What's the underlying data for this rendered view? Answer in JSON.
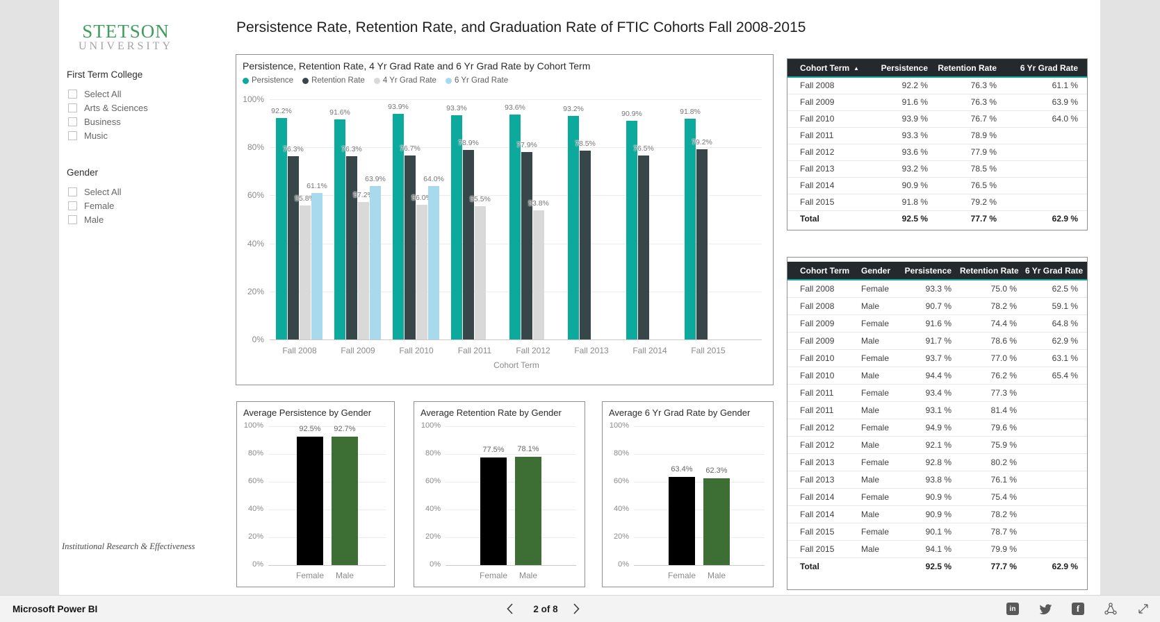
{
  "page_title": "Persistence Rate, Retention Rate, and Graduation Rate of FTIC Cohorts Fall 2008-2015",
  "logo": {
    "primary": "STETSON",
    "secondary": "UNIVERSITY"
  },
  "sidebar": {
    "filters": [
      {
        "label": "First Term College",
        "options": [
          "Select All",
          "Arts & Sciences",
          "Business",
          "Music"
        ],
        "checked": [
          false,
          false,
          false,
          false
        ]
      },
      {
        "label": "Gender",
        "options": [
          "Select All",
          "Female",
          "Male"
        ],
        "checked": [
          false,
          false,
          false
        ]
      }
    ],
    "footer_note": "Institutional Research & Effectiveness"
  },
  "colors": {
    "teal": "#0BAA9C",
    "dark": "#374649",
    "gray": "#D9D9D9",
    "light_blue": "#A9D9EC",
    "female": "#000000",
    "male": "#3D6F35",
    "accent": "#12A79B"
  },
  "chart_data": [
    {
      "type": "bar",
      "title": "Persistence, Retention Rate, 4 Yr Grad Rate and 6 Yr Grad Rate by Cohort Term",
      "categories": [
        "Fall 2008",
        "Fall 2009",
        "Fall 2010",
        "Fall 2011",
        "Fall 2012",
        "Fall 2013",
        "Fall 2014",
        "Fall 2015"
      ],
      "series": [
        {
          "name": "Persistence",
          "color": "#0BAA9C",
          "values": [
            92.2,
            91.6,
            93.9,
            93.3,
            93.6,
            93.2,
            90.9,
            91.8
          ]
        },
        {
          "name": "Retention Rate",
          "color": "#374649",
          "values": [
            76.3,
            76.3,
            76.7,
            78.9,
            77.9,
            78.5,
            76.5,
            79.2
          ]
        },
        {
          "name": "4 Yr Grad Rate",
          "color": "#D9D9D9",
          "values": [
            55.8,
            57.2,
            56.0,
            55.5,
            53.8,
            null,
            null,
            null
          ]
        },
        {
          "name": "6 Yr Grad Rate",
          "color": "#A9D9EC",
          "values": [
            61.1,
            63.9,
            64.0,
            null,
            null,
            null,
            null,
            null
          ]
        }
      ],
      "xlabel": "Cohort Term",
      "ylim": [
        0,
        100
      ],
      "yticks": [
        "0%",
        "20%",
        "40%",
        "60%",
        "80%",
        "100%"
      ],
      "legend_position": "top",
      "grid": true
    },
    {
      "type": "bar",
      "title": "Average Persistence by Gender",
      "categories": [
        "Female",
        "Male"
      ],
      "values": [
        92.5,
        92.7
      ],
      "colors": [
        "#000000",
        "#3D6F35"
      ],
      "ylim": [
        0,
        100
      ],
      "yticks": [
        "0%",
        "20%",
        "40%",
        "60%",
        "80%",
        "100%"
      ]
    },
    {
      "type": "bar",
      "title": "Average Retention Rate by Gender",
      "categories": [
        "Female",
        "Male"
      ],
      "values": [
        77.5,
        78.1
      ],
      "ylim": [
        0,
        100
      ],
      "colors": [
        "#000000",
        "#3D6F35"
      ],
      "yticks": [
        "0%",
        "20%",
        "40%",
        "60%",
        "80%",
        "100%"
      ]
    },
    {
      "type": "bar",
      "title": "Average 6 Yr Grad Rate by Gender",
      "categories": [
        "Female",
        "Male"
      ],
      "values": [
        63.4,
        62.3
      ],
      "ylim": [
        0,
        100
      ],
      "colors": [
        "#000000",
        "#3D6F35"
      ],
      "yticks": [
        "0%",
        "20%",
        "40%",
        "60%",
        "80%",
        "100%"
      ]
    }
  ],
  "tables": [
    {
      "columns": [
        "Cohort Term",
        "Persistence",
        "Retention Rate",
        "6 Yr Grad Rate"
      ],
      "sort": {
        "column": "Cohort Term",
        "direction": "asc"
      },
      "rows": [
        [
          "Fall 2008",
          "92.2 %",
          "76.3 %",
          "61.1 %"
        ],
        [
          "Fall 2009",
          "91.6 %",
          "76.3 %",
          "63.9 %"
        ],
        [
          "Fall 2010",
          "93.9 %",
          "76.7 %",
          "64.0 %"
        ],
        [
          "Fall 2011",
          "93.3 %",
          "78.9 %",
          ""
        ],
        [
          "Fall 2012",
          "93.6 %",
          "77.9 %",
          ""
        ],
        [
          "Fall 2013",
          "93.2 %",
          "78.5 %",
          ""
        ],
        [
          "Fall 2014",
          "90.9 %",
          "76.5 %",
          ""
        ],
        [
          "Fall 2015",
          "91.8 %",
          "79.2 %",
          ""
        ]
      ],
      "total": [
        "Total",
        "92.5 %",
        "77.7 %",
        "62.9 %"
      ]
    },
    {
      "columns": [
        "Cohort Term",
        "Gender",
        "Persistence",
        "Retention Rate",
        "6 Yr Grad Rate"
      ],
      "rows": [
        [
          "Fall 2008",
          "Female",
          "93.3 %",
          "75.0 %",
          "62.5 %"
        ],
        [
          "Fall 2008",
          "Male",
          "90.7 %",
          "78.2 %",
          "59.1 %"
        ],
        [
          "Fall 2009",
          "Female",
          "91.6 %",
          "74.4 %",
          "64.8 %"
        ],
        [
          "Fall 2009",
          "Male",
          "91.7 %",
          "78.6 %",
          "62.9 %"
        ],
        [
          "Fall 2010",
          "Female",
          "93.7 %",
          "77.0 %",
          "63.1 %"
        ],
        [
          "Fall 2010",
          "Male",
          "94.4 %",
          "76.2 %",
          "65.4 %"
        ],
        [
          "Fall 2011",
          "Female",
          "93.4 %",
          "77.3 %",
          ""
        ],
        [
          "Fall 2011",
          "Male",
          "93.1 %",
          "81.4 %",
          ""
        ],
        [
          "Fall 2012",
          "Female",
          "94.9 %",
          "79.6 %",
          ""
        ],
        [
          "Fall 2012",
          "Male",
          "92.1 %",
          "75.9 %",
          ""
        ],
        [
          "Fall 2013",
          "Female",
          "92.8 %",
          "80.2 %",
          ""
        ],
        [
          "Fall 2013",
          "Male",
          "93.8 %",
          "76.1 %",
          ""
        ],
        [
          "Fall 2014",
          "Female",
          "90.9 %",
          "75.4 %",
          ""
        ],
        [
          "Fall 2014",
          "Male",
          "90.9 %",
          "78.2 %",
          ""
        ],
        [
          "Fall 2015",
          "Female",
          "90.1 %",
          "78.7 %",
          ""
        ],
        [
          "Fall 2015",
          "Male",
          "94.1 %",
          "79.9 %",
          ""
        ]
      ],
      "total": [
        "Total",
        "",
        "92.5 %",
        "77.7 %",
        "62.9 %"
      ]
    }
  ],
  "footer": {
    "brand": "Microsoft Power BI",
    "page": "2 of 8",
    "icons": [
      "linkedin-icon",
      "twitter-icon",
      "facebook-icon",
      "share-icon",
      "fullscreen-icon"
    ]
  }
}
